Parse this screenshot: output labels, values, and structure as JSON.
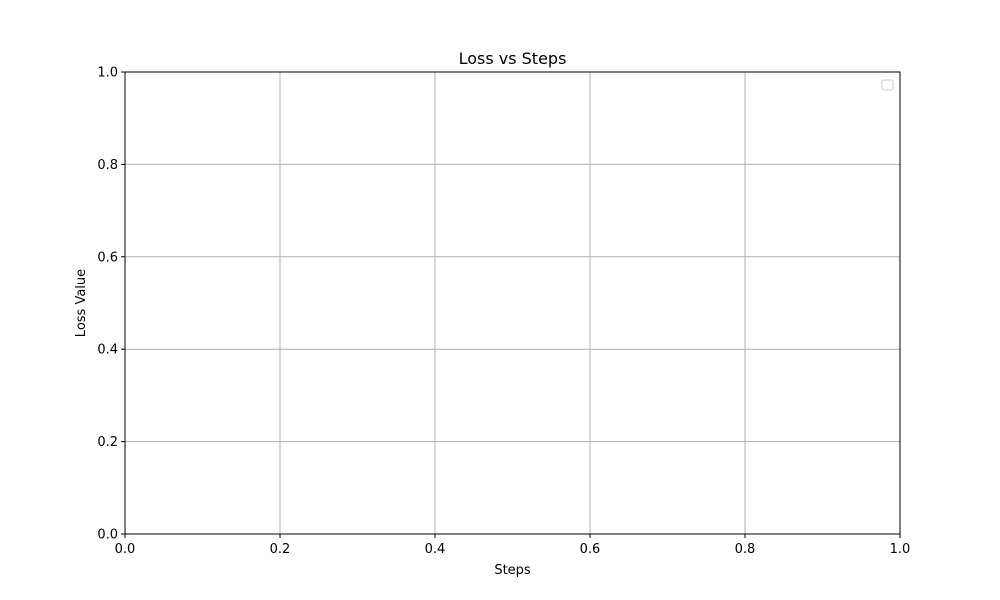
{
  "chart_data": {
    "type": "line",
    "title": "Loss vs Steps",
    "xlabel": "Steps",
    "ylabel": "Loss Value",
    "xlim": [
      0.0,
      1.0
    ],
    "ylim": [
      0.0,
      1.0
    ],
    "x_ticks": [
      "0.0",
      "0.2",
      "0.4",
      "0.6",
      "0.8",
      "1.0"
    ],
    "y_ticks": [
      "0.0",
      "0.2",
      "0.4",
      "0.6",
      "0.8",
      "1.0"
    ],
    "grid": true,
    "legend": {
      "placement": "top-right",
      "entries": []
    },
    "series": [],
    "colors": {
      "grid": "#b0b0b0",
      "axes": "#000000",
      "legend_border": "#cccccc"
    }
  }
}
